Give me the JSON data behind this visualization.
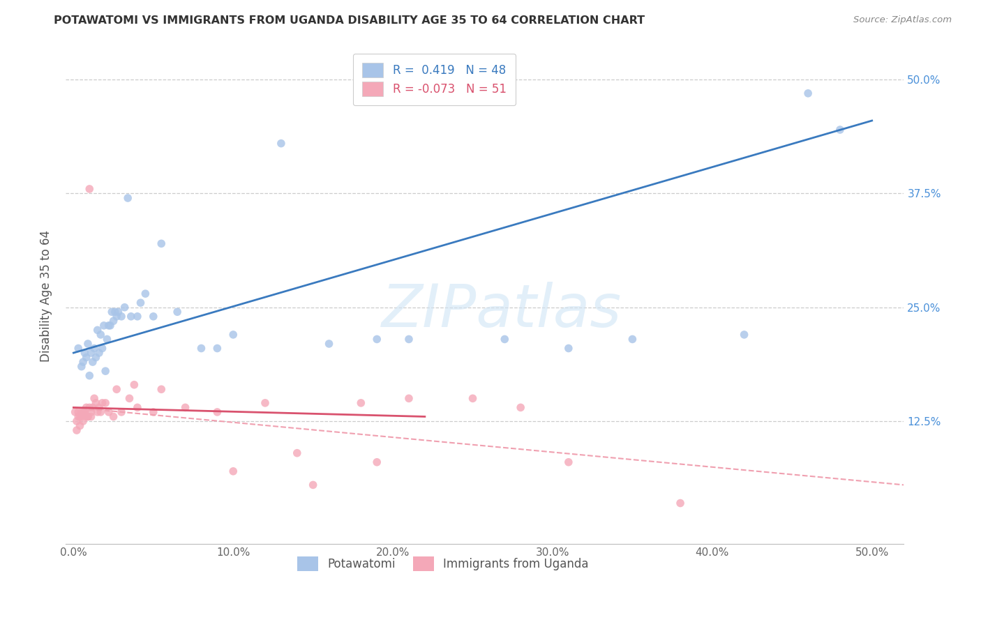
{
  "title": "POTAWATOMI VS IMMIGRANTS FROM UGANDA DISABILITY AGE 35 TO 64 CORRELATION CHART",
  "source": "Source: ZipAtlas.com",
  "ylabel": "Disability Age 35 to 64",
  "xlim": [
    -0.005,
    0.52
  ],
  "ylim": [
    -0.01,
    0.535
  ],
  "ytick_vals": [
    0.125,
    0.25,
    0.375,
    0.5
  ],
  "xtick_vals": [
    0.0,
    0.1,
    0.2,
    0.3,
    0.4,
    0.5
  ],
  "legend_blue_r": "0.419",
  "legend_blue_n": "48",
  "legend_pink_r": "-0.073",
  "legend_pink_n": "51",
  "blue_color": "#a8c4e8",
  "pink_color": "#f4a8b8",
  "blue_line_color": "#3a7abf",
  "pink_line_color": "#d9526e",
  "pink_dash_color": "#f0a0b0",
  "watermark": "ZIPatlas",
  "blue_scatter_x": [
    0.003,
    0.005,
    0.006,
    0.007,
    0.008,
    0.009,
    0.01,
    0.011,
    0.012,
    0.013,
    0.014,
    0.015,
    0.016,
    0.017,
    0.018,
    0.019,
    0.02,
    0.021,
    0.022,
    0.023,
    0.024,
    0.025,
    0.026,
    0.027,
    0.028,
    0.03,
    0.032,
    0.034,
    0.036,
    0.04,
    0.042,
    0.045,
    0.05,
    0.055,
    0.065,
    0.08,
    0.09,
    0.1,
    0.13,
    0.16,
    0.19,
    0.21,
    0.27,
    0.31,
    0.35,
    0.42,
    0.46,
    0.48
  ],
  "blue_scatter_y": [
    0.205,
    0.185,
    0.19,
    0.2,
    0.195,
    0.21,
    0.175,
    0.2,
    0.19,
    0.205,
    0.195,
    0.225,
    0.2,
    0.22,
    0.205,
    0.23,
    0.18,
    0.215,
    0.23,
    0.23,
    0.245,
    0.235,
    0.245,
    0.24,
    0.245,
    0.24,
    0.25,
    0.37,
    0.24,
    0.24,
    0.255,
    0.265,
    0.24,
    0.32,
    0.245,
    0.205,
    0.205,
    0.22,
    0.43,
    0.21,
    0.215,
    0.215,
    0.215,
    0.205,
    0.215,
    0.22,
    0.485,
    0.445
  ],
  "pink_scatter_x": [
    0.001,
    0.002,
    0.002,
    0.003,
    0.003,
    0.004,
    0.004,
    0.005,
    0.005,
    0.006,
    0.006,
    0.007,
    0.007,
    0.008,
    0.008,
    0.009,
    0.009,
    0.01,
    0.01,
    0.011,
    0.011,
    0.012,
    0.013,
    0.014,
    0.015,
    0.016,
    0.017,
    0.018,
    0.02,
    0.022,
    0.025,
    0.027,
    0.03,
    0.035,
    0.038,
    0.04,
    0.05,
    0.055,
    0.07,
    0.09,
    0.1,
    0.12,
    0.14,
    0.15,
    0.18,
    0.19,
    0.21,
    0.25,
    0.28,
    0.31,
    0.38
  ],
  "pink_scatter_y": [
    0.135,
    0.125,
    0.115,
    0.135,
    0.13,
    0.13,
    0.12,
    0.135,
    0.13,
    0.135,
    0.125,
    0.135,
    0.135,
    0.14,
    0.13,
    0.13,
    0.13,
    0.38,
    0.14,
    0.135,
    0.13,
    0.14,
    0.15,
    0.145,
    0.135,
    0.14,
    0.135,
    0.145,
    0.145,
    0.135,
    0.13,
    0.16,
    0.135,
    0.15,
    0.165,
    0.14,
    0.135,
    0.16,
    0.14,
    0.135,
    0.07,
    0.145,
    0.09,
    0.055,
    0.145,
    0.08,
    0.15,
    0.15,
    0.14,
    0.08,
    0.035
  ],
  "blue_line_x": [
    0.0,
    0.5
  ],
  "blue_line_y": [
    0.2,
    0.455
  ],
  "pink_solid_line_x": [
    0.0,
    0.22
  ],
  "pink_solid_line_y": [
    0.14,
    0.13
  ],
  "pink_dash_line_x": [
    0.0,
    0.52
  ],
  "pink_dash_line_y": [
    0.14,
    0.055
  ]
}
